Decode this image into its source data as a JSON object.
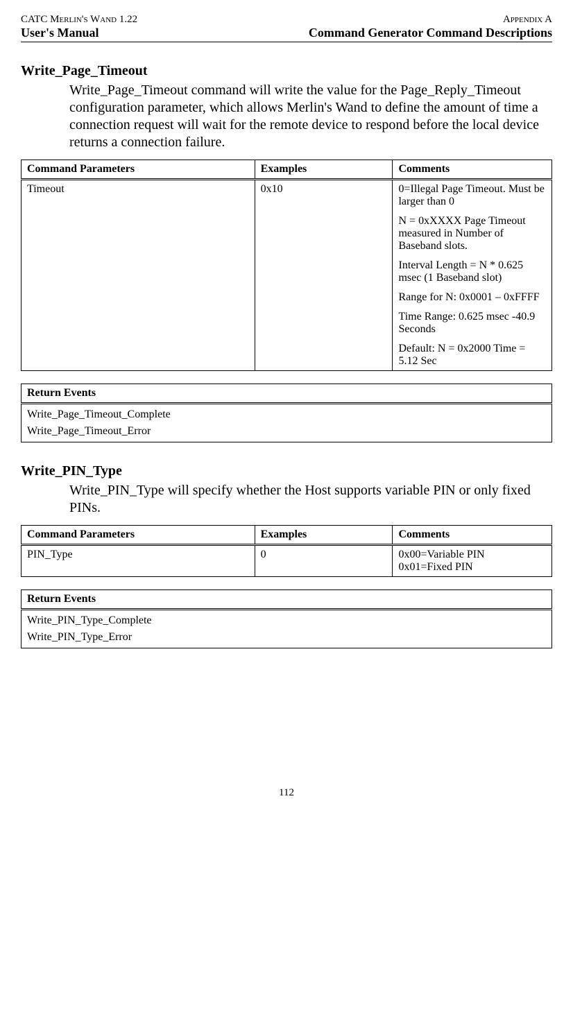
{
  "header": {
    "top_left": "CATC Merlin's Wand 1.22",
    "top_right": "Appendix A",
    "sub_left": "User's Manual",
    "sub_right": "Command Generator Command Descriptions"
  },
  "section1": {
    "title": "Write_Page_Timeout",
    "body": "Write_Page_Timeout command will write the value for the Page_Reply_Timeout configuration parameter, which allows Merlin's Wand to define the amount of time a connection request will wait for the remote device to respond before the local device returns a connection failure.",
    "param_table": {
      "headers": {
        "c1": "Command Parameters",
        "c2": "Examples",
        "c3": "Comments"
      },
      "row": {
        "param": "Timeout",
        "example": "0x10",
        "comments": [
          "0=Illegal Page Timeout. Must be larger than 0",
          "N = 0xXXXX Page Timeout measured in Number of Baseband slots.",
          "Interval Length = N * 0.625 msec (1 Baseband slot)",
          "Range for N: 0x0001 – 0xFFFF",
          "Time Range: 0.625 msec -40.9 Seconds",
          "Default: N = 0x2000 Time = 5.12 Sec"
        ]
      }
    },
    "events_table": {
      "header": "Return Events",
      "rows": [
        "Write_Page_Timeout_Complete",
        "Write_Page_Timeout_Error"
      ]
    }
  },
  "section2": {
    "title": "Write_PIN_Type",
    "body": "Write_PIN_Type will specify whether the Host supports variable PIN or only fixed PINs.",
    "param_table": {
      "headers": {
        "c1": "Command Parameters",
        "c2": "Examples",
        "c3": "Comments"
      },
      "row": {
        "param": "PIN_Type",
        "example": "0",
        "comments": [
          "0x00=Variable PIN",
          "0x01=Fixed PIN"
        ]
      }
    },
    "events_table": {
      "header": "Return Events",
      "rows": [
        "Write_PIN_Type_Complete",
        "Write_PIN_Type_Error"
      ]
    }
  },
  "page_number": "112"
}
